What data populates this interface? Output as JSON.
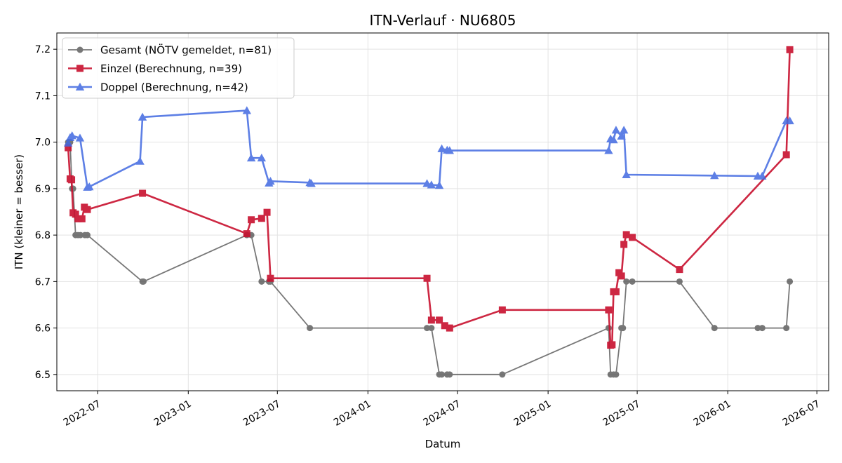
{
  "chart_data": {
    "type": "line",
    "title": "ITN-Verlauf · NU6805",
    "xlabel": "Datum",
    "ylabel": "ITN  (kleiner = besser)",
    "xlim": [
      "2022-04-09",
      "2026-07-25"
    ],
    "ylim": [
      6.465,
      7.235
    ],
    "y_ticks": [
      6.5,
      6.6,
      6.7,
      6.8,
      6.9,
      7.0,
      7.1,
      7.2
    ],
    "x_ticks": [
      "2022-07",
      "2023-01",
      "2023-07",
      "2024-01",
      "2024-07",
      "2025-01",
      "2025-07",
      "2026-01",
      "2026-07"
    ],
    "grid": true,
    "legend_position": "top-left",
    "series": [
      {
        "name": "Gesamt (NÖTV gemeldet, n=81)",
        "color": "#444444",
        "marker": "circle",
        "points": [
          [
            "2022-05-02",
            7.0
          ],
          [
            "2022-05-06",
            7.0
          ],
          [
            "2022-05-10",
            6.9
          ],
          [
            "2022-05-12",
            6.9
          ],
          [
            "2022-05-17",
            6.8
          ],
          [
            "2022-05-22",
            6.8
          ],
          [
            "2022-05-27",
            6.8
          ],
          [
            "2022-06-05",
            6.8
          ],
          [
            "2022-06-10",
            6.8
          ],
          [
            "2022-09-30",
            6.7
          ],
          [
            "2022-10-02",
            6.7
          ],
          [
            "2023-04-30",
            6.8
          ],
          [
            "2023-05-09",
            6.8
          ],
          [
            "2023-05-30",
            6.7
          ],
          [
            "2023-06-14",
            6.7
          ],
          [
            "2023-06-17",
            6.7
          ],
          [
            "2023-09-05",
            6.6
          ],
          [
            "2024-04-30",
            6.6
          ],
          [
            "2024-05-09",
            6.6
          ],
          [
            "2024-05-25",
            6.5
          ],
          [
            "2024-05-30",
            6.5
          ],
          [
            "2024-06-10",
            6.5
          ],
          [
            "2024-06-15",
            6.5
          ],
          [
            "2024-09-30",
            6.5
          ],
          [
            "2025-05-04",
            6.6
          ],
          [
            "2025-05-08",
            6.5
          ],
          [
            "2025-05-14",
            6.5
          ],
          [
            "2025-05-19",
            6.5
          ],
          [
            "2025-05-30",
            6.6
          ],
          [
            "2025-06-02",
            6.6
          ],
          [
            "2025-06-09",
            6.7
          ],
          [
            "2025-06-21",
            6.7
          ],
          [
            "2025-09-25",
            6.7
          ],
          [
            "2025-12-05",
            6.6
          ],
          [
            "2026-03-03",
            6.6
          ],
          [
            "2026-03-12",
            6.6
          ],
          [
            "2026-04-30",
            6.6
          ],
          [
            "2026-05-07",
            6.7
          ]
        ]
      },
      {
        "name": "Einzel (Berechnung, n=39)",
        "color": "#c8102e",
        "marker": "square",
        "points": [
          [
            "2022-05-02",
            6.988
          ],
          [
            "2022-05-06",
            6.921
          ],
          [
            "2022-05-09",
            6.919
          ],
          [
            "2022-05-12",
            6.848
          ],
          [
            "2022-05-17",
            6.845
          ],
          [
            "2022-05-22",
            6.835
          ],
          [
            "2022-05-30",
            6.835
          ],
          [
            "2022-06-04",
            6.86
          ],
          [
            "2022-06-10",
            6.855
          ],
          [
            "2022-09-30",
            6.89
          ],
          [
            "2023-04-30",
            6.803
          ],
          [
            "2023-05-09",
            6.833
          ],
          [
            "2023-05-30",
            6.836
          ],
          [
            "2023-06-10",
            6.849
          ],
          [
            "2023-06-17",
            6.707
          ],
          [
            "2024-04-30",
            6.707
          ],
          [
            "2024-05-09",
            6.617
          ],
          [
            "2024-05-25",
            6.617
          ],
          [
            "2024-06-05",
            6.605
          ],
          [
            "2024-06-15",
            6.6
          ],
          [
            "2024-09-30",
            6.639
          ],
          [
            "2025-05-04",
            6.639
          ],
          [
            "2025-05-08",
            6.563
          ],
          [
            "2025-05-11",
            6.564
          ],
          [
            "2025-05-14",
            6.678
          ],
          [
            "2025-05-19",
            6.678
          ],
          [
            "2025-05-25",
            6.719
          ],
          [
            "2025-05-30",
            6.712
          ],
          [
            "2025-06-04",
            6.78
          ],
          [
            "2025-06-09",
            6.801
          ],
          [
            "2025-06-21",
            6.795
          ],
          [
            "2025-09-25",
            6.726
          ],
          [
            "2026-04-30",
            6.973
          ],
          [
            "2026-05-07",
            7.199
          ]
        ]
      },
      {
        "name": "Doppel (Berechnung, n=42)",
        "color": "#4169e1",
        "marker": "triangle",
        "points": [
          [
            "2022-05-02",
            6.998
          ],
          [
            "2022-05-06",
            7.01
          ],
          [
            "2022-05-10",
            7.014
          ],
          [
            "2022-05-26",
            7.009
          ],
          [
            "2022-06-10",
            6.903
          ],
          [
            "2022-06-14",
            6.904
          ],
          [
            "2022-09-25",
            6.959
          ],
          [
            "2022-09-30",
            7.054
          ],
          [
            "2023-04-30",
            7.068
          ],
          [
            "2023-05-09",
            6.966
          ],
          [
            "2023-05-30",
            6.966
          ],
          [
            "2023-06-14",
            6.912
          ],
          [
            "2023-06-17",
            6.916
          ],
          [
            "2023-09-05",
            6.913
          ],
          [
            "2023-09-08",
            6.911
          ],
          [
            "2024-04-30",
            6.911
          ],
          [
            "2024-05-09",
            6.908
          ],
          [
            "2024-05-25",
            6.907
          ],
          [
            "2024-05-30",
            6.986
          ],
          [
            "2024-06-10",
            6.983
          ],
          [
            "2024-06-15",
            6.982
          ],
          [
            "2025-05-04",
            6.982
          ],
          [
            "2025-05-08",
            7.007
          ],
          [
            "2025-05-14",
            7.005
          ],
          [
            "2025-05-19",
            7.026
          ],
          [
            "2025-05-30",
            7.013
          ],
          [
            "2025-06-04",
            7.026
          ],
          [
            "2025-06-09",
            6.93
          ],
          [
            "2025-12-05",
            6.928
          ],
          [
            "2026-03-03",
            6.927
          ],
          [
            "2026-03-12",
            6.927
          ],
          [
            "2026-04-30",
            7.046
          ],
          [
            "2026-05-07",
            7.046
          ]
        ]
      }
    ]
  }
}
